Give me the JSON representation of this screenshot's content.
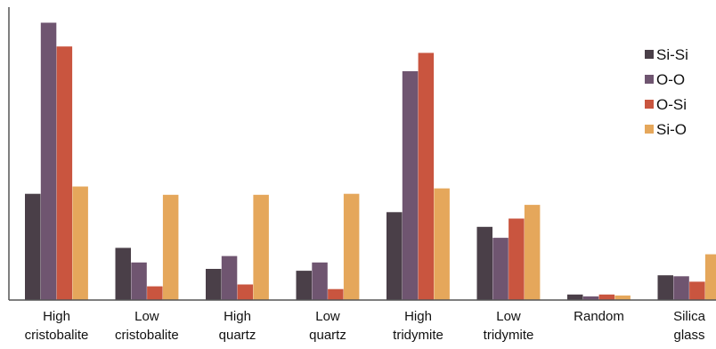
{
  "chart_data": {
    "type": "bar",
    "title": "",
    "xlabel": "",
    "ylabel": "",
    "categories": [
      [
        "High",
        "cristobalite"
      ],
      [
        "Low",
        "cristobalite"
      ],
      [
        "High",
        "quartz"
      ],
      [
        "Low",
        "quartz"
      ],
      [
        "High",
        "tridymite"
      ],
      [
        "Low",
        "tridymite"
      ],
      [
        "Random"
      ],
      [
        "Silica",
        "glass"
      ]
    ],
    "series": [
      {
        "name": "Si-Si",
        "color": "#4a3f48",
        "values": [
          116,
          57,
          34,
          32,
          96,
          80,
          6,
          27
        ]
      },
      {
        "name": "O-O",
        "color": "#6f5570",
        "values": [
          303,
          41,
          48,
          41,
          250,
          68,
          4,
          26
        ]
      },
      {
        "name": "O-Si",
        "color": "#c9553f",
        "values": [
          277,
          15,
          17,
          12,
          270,
          89,
          6,
          20
        ]
      },
      {
        "name": "Si-O",
        "color": "#e5a75b",
        "values": [
          124,
          115,
          115,
          116,
          122,
          104,
          5,
          50
        ]
      }
    ],
    "ylim": [
      0,
      320
    ],
    "grid": false,
    "y_tick_labels": false,
    "legend_position": "right"
  }
}
